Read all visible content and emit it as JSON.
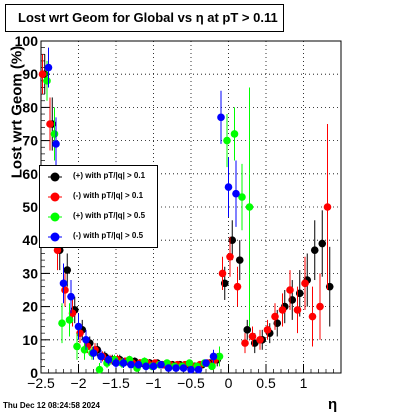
{
  "title": "Lost wrt Geom for Global vs    η  at pT > 0.11",
  "ylabel": "Lost wrt Geom (%)",
  "xlabel": "η",
  "footer": "Thu Dec 12 08:24:58 2024",
  "chart_data": {
    "type": "scatter",
    "xlim": [
      -2.5,
      1.5
    ],
    "ylim": [
      0,
      100
    ],
    "grid": true,
    "legend_position": "middle-left",
    "x_ticks": [
      "−2.5",
      "−2",
      "−1.5",
      "−1",
      "−0.5",
      "0",
      "0.5",
      "1"
    ],
    "y_ticks": [
      "0",
      "10",
      "20",
      "30",
      "40",
      "50",
      "60",
      "70",
      "80",
      "90",
      "100"
    ],
    "series": [
      {
        "name": "(+) with pT/|q| > 0.1",
        "color": "#000000",
        "points": [
          [
            -2.45,
            90,
            6
          ],
          [
            -2.35,
            75,
            8
          ],
          [
            -2.25,
            37,
            6
          ],
          [
            -2.15,
            31,
            5
          ],
          [
            -2.05,
            19,
            4
          ],
          [
            -1.95,
            13,
            3
          ],
          [
            -1.85,
            9,
            2
          ],
          [
            -1.75,
            7,
            2
          ],
          [
            -1.65,
            5,
            1.5
          ],
          [
            -1.55,
            4,
            1.5
          ],
          [
            -1.45,
            4,
            1.5
          ],
          [
            -1.35,
            3.5,
            1.2
          ],
          [
            -1.25,
            3.5,
            1.2
          ],
          [
            -1.15,
            3,
            1.2
          ],
          [
            -1.05,
            3,
            1.2
          ],
          [
            -0.95,
            3,
            1
          ],
          [
            -0.85,
            2.5,
            1
          ],
          [
            -0.75,
            2.5,
            1
          ],
          [
            -0.65,
            2.5,
            1
          ],
          [
            -0.55,
            2.5,
            1
          ],
          [
            -0.45,
            2,
            1
          ],
          [
            -0.35,
            2.5,
            1
          ],
          [
            -0.25,
            3,
            1
          ],
          [
            -0.15,
            4,
            2
          ],
          [
            -0.05,
            27,
            5
          ],
          [
            0.05,
            40,
            6
          ],
          [
            0.15,
            34,
            6
          ],
          [
            0.25,
            13,
            3
          ],
          [
            0.35,
            9,
            3
          ],
          [
            0.45,
            10,
            3
          ],
          [
            0.55,
            12,
            3
          ],
          [
            0.65,
            15,
            4
          ],
          [
            0.75,
            20,
            5
          ],
          [
            0.85,
            22,
            6
          ],
          [
            0.95,
            24,
            7
          ],
          [
            1.05,
            28,
            8
          ],
          [
            1.15,
            37,
            9
          ],
          [
            1.25,
            39,
            10
          ],
          [
            1.35,
            26,
            12
          ]
        ]
      },
      {
        "name": "(-) with pT/|q| > 0.1",
        "color": "#ff0000",
        "points": [
          [
            -2.48,
            90,
            6
          ],
          [
            -2.38,
            75,
            8
          ],
          [
            -2.28,
            37,
            6
          ],
          [
            -2.18,
            25,
            5
          ],
          [
            -2.08,
            18,
            4
          ],
          [
            -1.98,
            12,
            3
          ],
          [
            -1.88,
            8,
            2
          ],
          [
            -1.78,
            7,
            2
          ],
          [
            -1.68,
            5,
            1.5
          ],
          [
            -1.58,
            4,
            1.5
          ],
          [
            -1.48,
            4,
            1.5
          ],
          [
            -1.38,
            3.5,
            1.2
          ],
          [
            -1.28,
            3,
            1.2
          ],
          [
            -1.18,
            3,
            1.2
          ],
          [
            -1.08,
            3,
            1.2
          ],
          [
            -0.98,
            3,
            1
          ],
          [
            -0.88,
            2.5,
            1
          ],
          [
            -0.78,
            2.5,
            1
          ],
          [
            -0.68,
            2.5,
            1
          ],
          [
            -0.58,
            2.5,
            1
          ],
          [
            -0.48,
            2,
            1
          ],
          [
            -0.38,
            2.5,
            1
          ],
          [
            -0.28,
            3,
            1
          ],
          [
            -0.18,
            4,
            2
          ],
          [
            -0.08,
            30,
            5
          ],
          [
            0.02,
            35,
            6
          ],
          [
            0.12,
            26,
            6
          ],
          [
            0.22,
            9,
            3
          ],
          [
            0.32,
            11,
            3
          ],
          [
            0.42,
            10,
            3
          ],
          [
            0.52,
            13,
            3
          ],
          [
            0.62,
            17,
            4
          ],
          [
            0.72,
            19,
            5
          ],
          [
            0.82,
            25,
            6
          ],
          [
            0.92,
            19,
            7
          ],
          [
            1.02,
            27,
            8
          ],
          [
            1.12,
            17,
            9
          ],
          [
            1.22,
            20,
            10
          ],
          [
            1.32,
            50,
            25
          ]
        ]
      },
      {
        "name": "(+) with pT/|q| > 0.5",
        "color": "#00ff00",
        "points": [
          [
            -2.42,
            88,
            6
          ],
          [
            -2.32,
            72,
            8
          ],
          [
            -2.22,
            15,
            6
          ],
          [
            -2.12,
            16,
            5
          ],
          [
            -2.02,
            8,
            4
          ],
          [
            -1.92,
            7,
            3
          ],
          [
            -1.82,
            6,
            2
          ],
          [
            -1.72,
            1,
            2
          ],
          [
            -1.62,
            3,
            1.5
          ],
          [
            -1.52,
            4,
            1.5
          ],
          [
            -1.42,
            3,
            1.5
          ],
          [
            -1.32,
            4,
            1.2
          ],
          [
            -1.22,
            1.5,
            1.2
          ],
          [
            -1.12,
            3.5,
            1.2
          ],
          [
            -1.02,
            2,
            1.2
          ],
          [
            -0.92,
            2.5,
            1
          ],
          [
            -0.82,
            3,
            1
          ],
          [
            -0.72,
            2,
            1
          ],
          [
            -0.62,
            2,
            1
          ],
          [
            -0.52,
            3,
            1
          ],
          [
            -0.42,
            2,
            1
          ],
          [
            -0.32,
            3,
            1
          ],
          [
            -0.22,
            2,
            1
          ],
          [
            -0.12,
            5,
            3
          ],
          [
            -0.02,
            70,
            8
          ],
          [
            0.08,
            72,
            8
          ],
          [
            0.18,
            53,
            10
          ],
          [
            0.28,
            50,
            36
          ]
        ]
      },
      {
        "name": "(-) with pT/|q| > 0.5",
        "color": "#0000ff",
        "points": [
          [
            -2.4,
            92,
            6
          ],
          [
            -2.3,
            69,
            8
          ],
          [
            -2.2,
            27,
            6
          ],
          [
            -2.1,
            23,
            5
          ],
          [
            -2.0,
            14,
            4
          ],
          [
            -1.9,
            10,
            3
          ],
          [
            -1.8,
            6,
            2
          ],
          [
            -1.7,
            5,
            2
          ],
          [
            -1.6,
            4,
            1.5
          ],
          [
            -1.5,
            3,
            1.5
          ],
          [
            -1.4,
            3,
            1.5
          ],
          [
            -1.3,
            2.5,
            1.2
          ],
          [
            -1.2,
            2.5,
            1.2
          ],
          [
            -1.1,
            2,
            1.2
          ],
          [
            -1.0,
            2,
            1.2
          ],
          [
            -0.9,
            2.5,
            1
          ],
          [
            -0.8,
            1.5,
            1
          ],
          [
            -0.7,
            1.5,
            1
          ],
          [
            -0.6,
            1.5,
            1
          ],
          [
            -0.5,
            1,
            1
          ],
          [
            -0.4,
            1,
            1
          ],
          [
            -0.3,
            3,
            1
          ],
          [
            -0.2,
            5,
            2
          ],
          [
            -0.1,
            77,
            8
          ],
          [
            0.0,
            56,
            9
          ],
          [
            0.1,
            54,
            10
          ]
        ]
      }
    ]
  }
}
